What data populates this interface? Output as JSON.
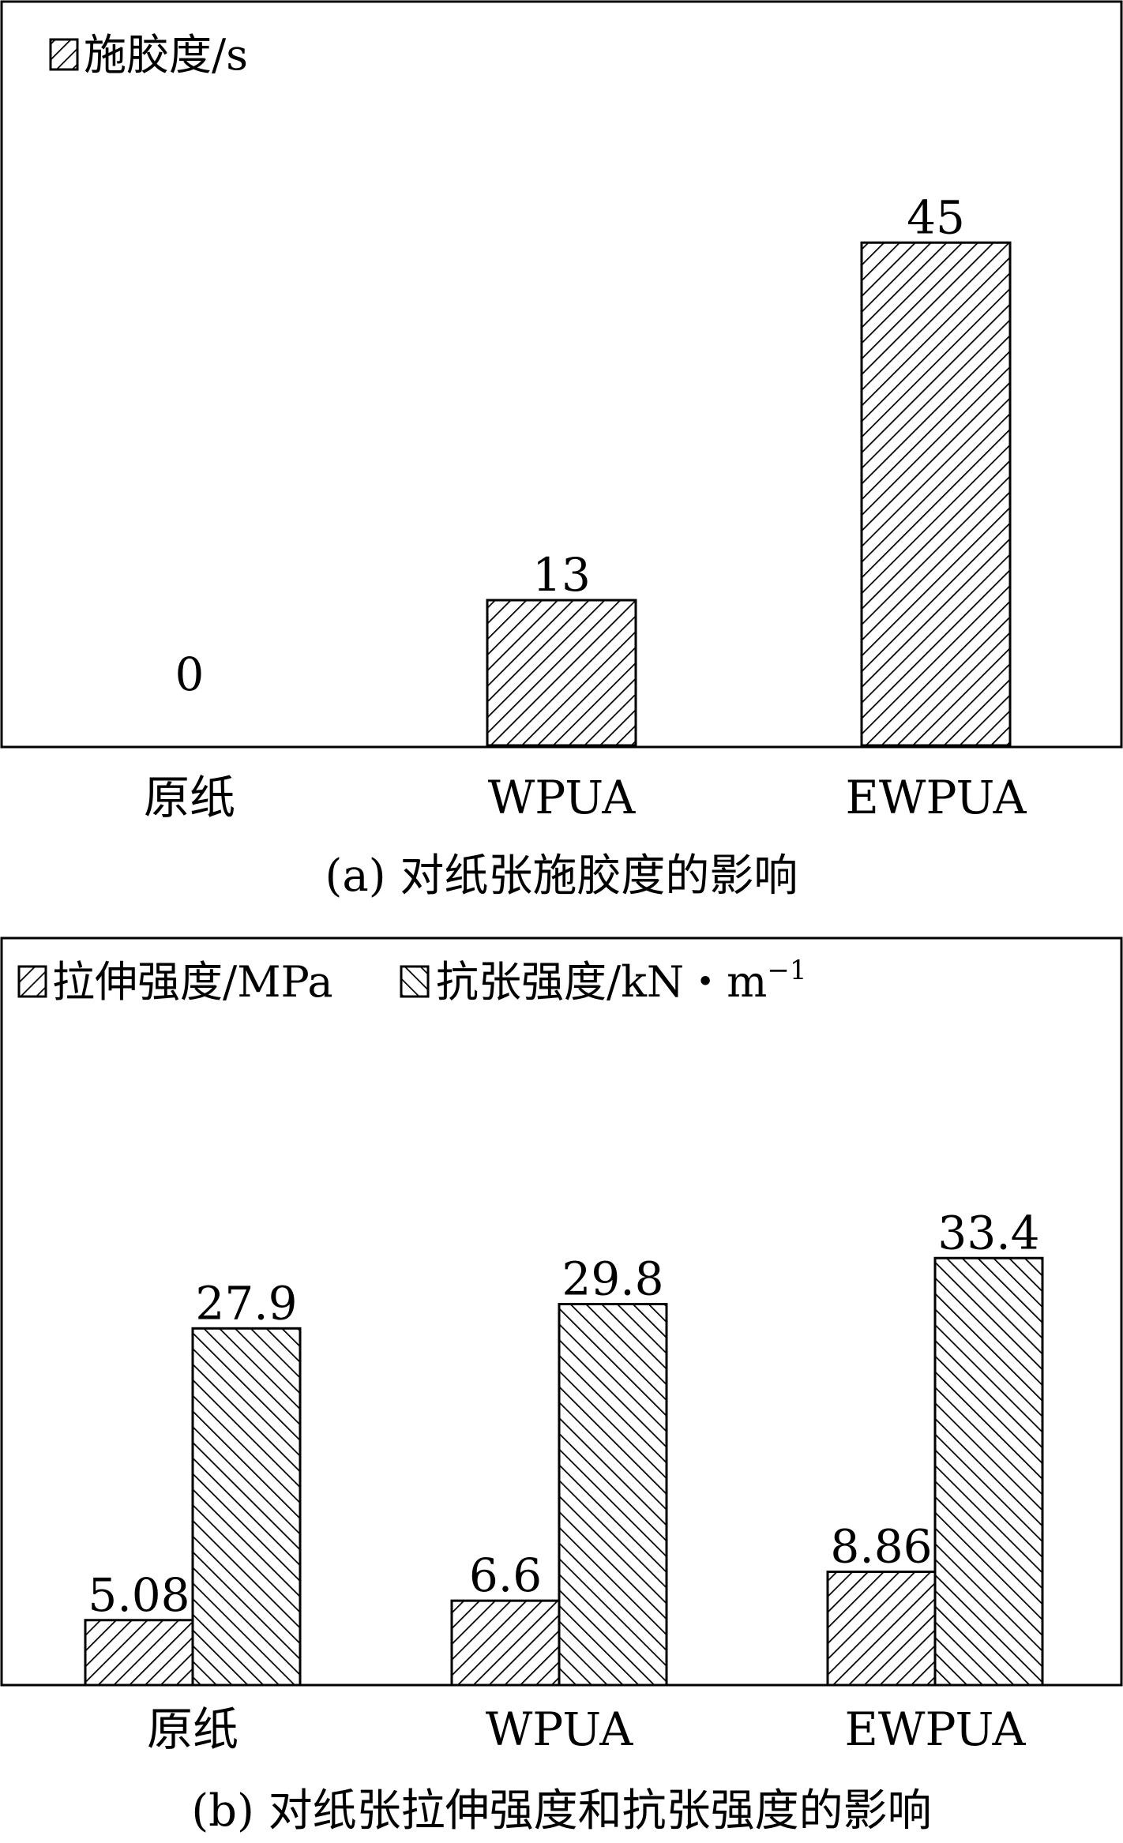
{
  "chart_data": [
    {
      "type": "bar",
      "categories": [
        "原纸",
        "WPUA",
        "EWPUA"
      ],
      "series": [
        {
          "name": "施胶度/s",
          "values": [
            0,
            13,
            45
          ]
        }
      ],
      "value_labels": [
        "0",
        "13",
        "45"
      ],
      "caption": "(a) 对纸张施胶度的影响",
      "ylim": [
        0,
        50
      ],
      "grid": false,
      "legend_position": "top-left",
      "hatch": [
        "backslash"
      ]
    },
    {
      "type": "bar",
      "categories": [
        "原纸",
        "WPUA",
        "EWPUA"
      ],
      "series": [
        {
          "name": "拉伸强度/MPa",
          "values": [
            5.08,
            6.6,
            8.86
          ]
        },
        {
          "name": "抗张强度/kN・m",
          "values": [
            27.9,
            29.8,
            33.4
          ]
        }
      ],
      "value_labels": [
        [
          "5.08",
          "6.6",
          "8.86"
        ],
        [
          "27.9",
          "29.8",
          "33.4"
        ]
      ],
      "legend_superscript": "−1",
      "caption": "(b) 对纸张拉伸强度和抗张强度的影响",
      "ylim": [
        0,
        45
      ],
      "grid": false,
      "legend_position": "top-left",
      "hatch": [
        "backslash",
        "slash"
      ]
    }
  ]
}
